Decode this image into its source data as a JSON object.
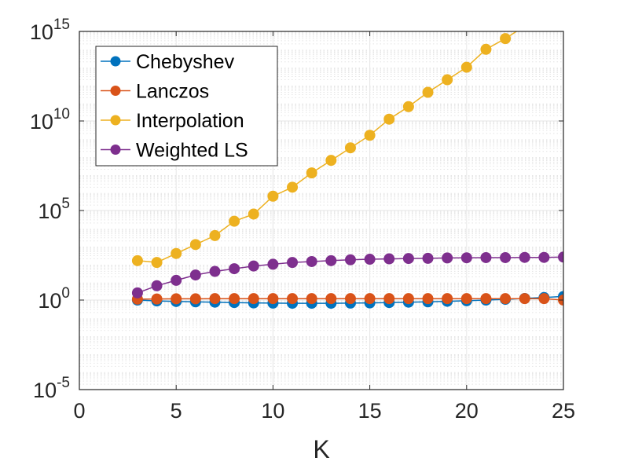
{
  "chart_data": {
    "type": "line",
    "xlabel": "K",
    "ylabel": "",
    "title": "",
    "xlim": [
      0,
      25
    ],
    "ylim_log10": [
      -5,
      15
    ],
    "yscale": "log",
    "grid": true,
    "minor_grid_y": true,
    "legend_position": "top-left",
    "xticks": [
      0,
      5,
      10,
      15,
      20,
      25
    ],
    "xtick_labels": [
      "0",
      "5",
      "10",
      "15",
      "20",
      "25"
    ],
    "yticks_log10": [
      -5,
      0,
      5,
      10,
      15
    ],
    "ytick_base": "10",
    "ytick_exponents": [
      "-5",
      "0",
      "5",
      "10",
      "15"
    ],
    "x": [
      3,
      4,
      5,
      6,
      7,
      8,
      9,
      10,
      11,
      12,
      13,
      14,
      15,
      16,
      17,
      18,
      19,
      20,
      21,
      22,
      23,
      24,
      25
    ],
    "series": [
      {
        "name": "Chebyshev",
        "color": "#0072BD",
        "log10_values": [
          0.0,
          -0.05,
          -0.08,
          -0.1,
          -0.12,
          -0.14,
          -0.16,
          -0.17,
          -0.18,
          -0.18,
          -0.18,
          -0.17,
          -0.16,
          -0.14,
          -0.12,
          -0.1,
          -0.07,
          -0.04,
          0.0,
          0.04,
          0.09,
          0.14,
          0.2
        ]
      },
      {
        "name": "Lanczos",
        "color": "#D95319",
        "log10_values": [
          0.05,
          0.06,
          0.07,
          0.07,
          0.08,
          0.08,
          0.08,
          0.08,
          0.08,
          0.08,
          0.08,
          0.08,
          0.08,
          0.08,
          0.08,
          0.08,
          0.08,
          0.08,
          0.08,
          0.08,
          0.08,
          0.08,
          0.0
        ]
      },
      {
        "name": "Interpolation",
        "color": "#EDB120",
        "log10_values": [
          2.2,
          2.1,
          2.6,
          3.1,
          3.6,
          4.4,
          4.8,
          5.8,
          6.3,
          7.1,
          7.8,
          8.5,
          9.2,
          10.1,
          10.8,
          11.6,
          12.3,
          13.0,
          14.0,
          14.6,
          15.3,
          16.0,
          17.0
        ]
      },
      {
        "name": "Weighted LS",
        "color": "#7E2F8E",
        "log10_values": [
          0.4,
          0.8,
          1.1,
          1.4,
          1.6,
          1.75,
          1.9,
          2.0,
          2.1,
          2.15,
          2.2,
          2.25,
          2.28,
          2.3,
          2.32,
          2.33,
          2.35,
          2.36,
          2.37,
          2.37,
          2.38,
          2.38,
          2.4
        ]
      }
    ]
  }
}
